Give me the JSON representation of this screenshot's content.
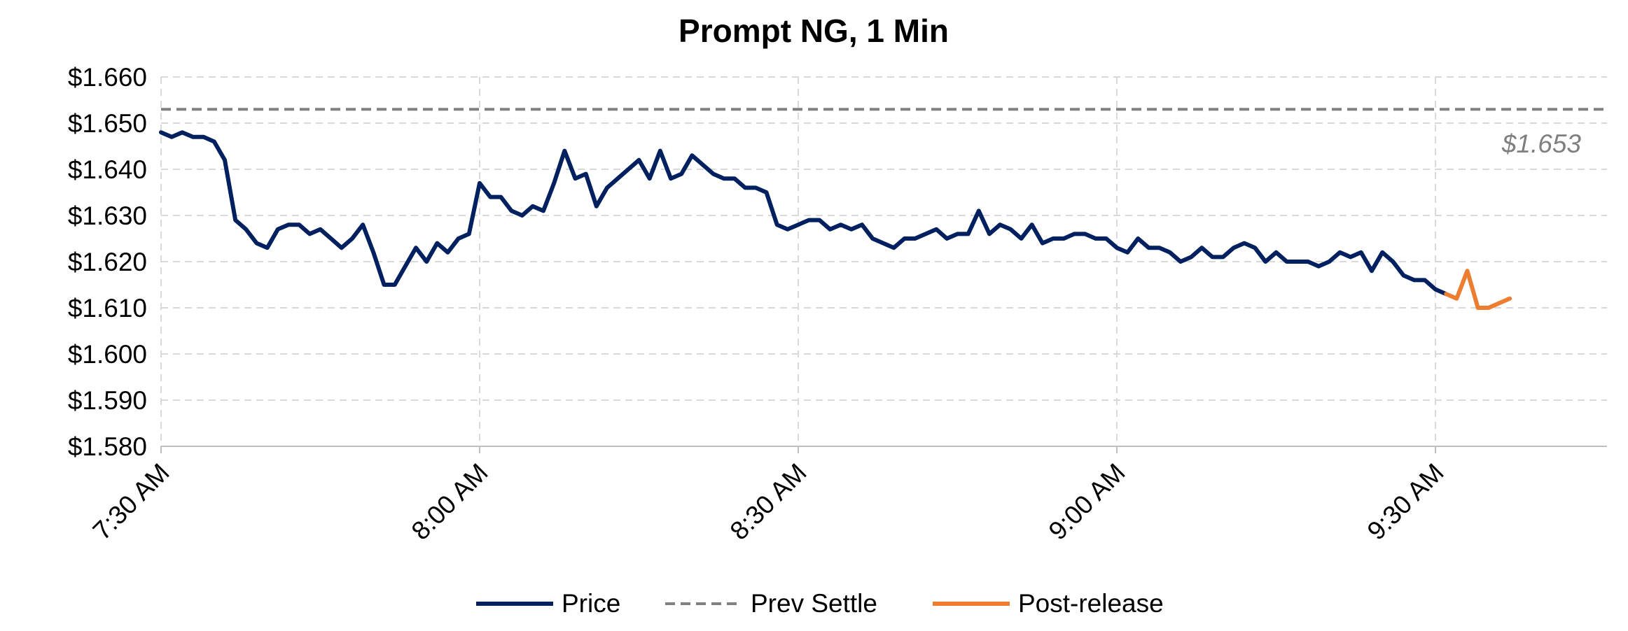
{
  "chart_data": {
    "type": "line",
    "title": "Prompt NG, 1 Min",
    "xlabel": "",
    "ylabel": "",
    "ylim": [
      1.58,
      1.66
    ],
    "y_ticks": [
      1.58,
      1.59,
      1.6,
      1.61,
      1.62,
      1.63,
      1.64,
      1.65,
      1.66
    ],
    "y_tick_labels": [
      "$1.580",
      "$1.590",
      "$1.600",
      "$1.610",
      "$1.620",
      "$1.630",
      "$1.640",
      "$1.650",
      "$1.660"
    ],
    "x_ticks": [
      0,
      30,
      60,
      90,
      120
    ],
    "x_tick_labels": [
      "7:30 AM",
      "8:00 AM",
      "8:30 AM",
      "9:00 AM",
      "9:30 AM"
    ],
    "grid": true,
    "legend_position": "bottom",
    "series": [
      {
        "name": "Price",
        "color": "#002060",
        "style": "solid",
        "x": [
          0,
          1,
          2,
          3,
          4,
          5,
          6,
          7,
          8,
          9,
          10,
          11,
          12,
          13,
          14,
          15,
          16,
          17,
          18,
          19,
          20,
          21,
          22,
          23,
          24,
          25,
          26,
          27,
          28,
          29,
          30,
          31,
          32,
          33,
          34,
          35,
          36,
          37,
          38,
          39,
          40,
          41,
          42,
          43,
          44,
          45,
          46,
          47,
          48,
          49,
          50,
          51,
          52,
          53,
          54,
          55,
          56,
          57,
          58,
          59,
          60,
          61,
          62,
          63,
          64,
          65,
          66,
          67,
          68,
          69,
          70,
          71,
          72,
          73,
          74,
          75,
          76,
          77,
          78,
          79,
          80,
          81,
          82,
          83,
          84,
          85,
          86,
          87,
          88,
          89,
          90,
          91,
          92,
          93,
          94,
          95,
          96,
          97,
          98,
          99,
          100,
          101,
          102,
          103,
          104,
          105,
          106,
          107,
          108,
          109,
          110,
          111,
          112,
          113,
          114,
          115,
          116,
          117,
          118,
          119,
          120,
          121
        ],
        "values": [
          1.648,
          1.647,
          1.648,
          1.647,
          1.647,
          1.646,
          1.642,
          1.629,
          1.627,
          1.624,
          1.623,
          1.627,
          1.628,
          1.628,
          1.626,
          1.627,
          1.625,
          1.623,
          1.625,
          1.628,
          1.622,
          1.615,
          1.615,
          1.619,
          1.623,
          1.62,
          1.624,
          1.622,
          1.625,
          1.626,
          1.637,
          1.634,
          1.634,
          1.631,
          1.63,
          1.632,
          1.631,
          1.637,
          1.644,
          1.638,
          1.639,
          1.632,
          1.636,
          1.638,
          1.64,
          1.642,
          1.638,
          1.644,
          1.638,
          1.639,
          1.643,
          1.641,
          1.639,
          1.638,
          1.638,
          1.636,
          1.636,
          1.635,
          1.628,
          1.627,
          1.628,
          1.629,
          1.629,
          1.627,
          1.628,
          1.627,
          1.628,
          1.625,
          1.624,
          1.623,
          1.625,
          1.625,
          1.626,
          1.627,
          1.625,
          1.626,
          1.626,
          1.631,
          1.626,
          1.628,
          1.627,
          1.625,
          1.628,
          1.624,
          1.625,
          1.625,
          1.626,
          1.626,
          1.625,
          1.625,
          1.623,
          1.622,
          1.625,
          1.623,
          1.623,
          1.622,
          1.62,
          1.621,
          1.623,
          1.621,
          1.621,
          1.623,
          1.624,
          1.623,
          1.62,
          1.622,
          1.62,
          1.62,
          1.62,
          1.619,
          1.62,
          1.622,
          1.621,
          1.622,
          1.618,
          1.622,
          1.62,
          1.617,
          1.616,
          1.616,
          1.614,
          1.613
        ]
      },
      {
        "name": "Prev Settle",
        "color": "#808080",
        "style": "dashed",
        "value": 1.653
      },
      {
        "name": "Post-release",
        "color": "#ED7D31",
        "style": "solid",
        "x": [
          121,
          122,
          123,
          124,
          125,
          126,
          127
        ],
        "values": [
          1.613,
          1.612,
          1.618,
          1.61,
          1.61,
          1.611,
          1.612
        ]
      }
    ],
    "annotations": [
      {
        "text": "$1.653",
        "value": 1.653,
        "position": "right, below line"
      }
    ]
  }
}
